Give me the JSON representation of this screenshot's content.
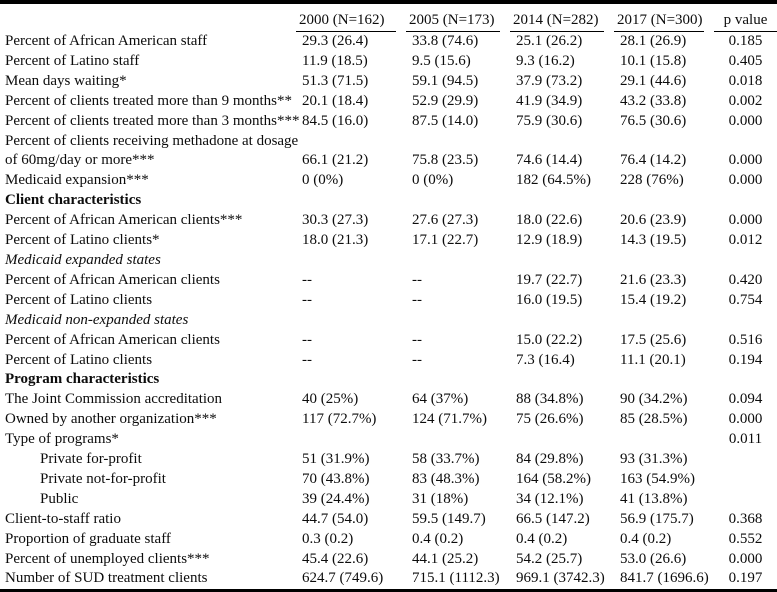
{
  "table": {
    "columns": [
      "",
      "2000 (N=162)",
      "2005 (N=173)",
      "2014 (N=282)",
      "2017 (N=300)",
      "p value"
    ],
    "rows": [
      {
        "label": "Percent of African American staff",
        "style": "normal",
        "values": [
          "29.3 (26.4)",
          "33.8 (74.6)",
          "25.1 (26.2)",
          "28.1 (26.9)",
          "0.185"
        ]
      },
      {
        "label": "Percent of Latino staff",
        "style": "normal",
        "values": [
          "11.9 (18.5)",
          "9.5 (15.6)",
          "9.3 (16.2)",
          "10.1 (15.8)",
          "0.405"
        ]
      },
      {
        "label": "Mean days waiting*",
        "style": "normal",
        "values": [
          "51.3 (71.5)",
          "59.1 (94.5)",
          "37.9 (73.2)",
          "29.1 (44.6)",
          "0.018"
        ]
      },
      {
        "label": "Percent of clients treated more than 9 months**",
        "style": "normal",
        "values": [
          "20.1 (18.4)",
          "52.9 (29.9)",
          "41.9 (34.9)",
          "43.2 (33.8)",
          "0.002"
        ]
      },
      {
        "label": "Percent of clients treated more than 3 months***",
        "style": "normal",
        "values": [
          "84.5 (16.0)",
          "87.5 (14.0)",
          "75.9 (30.6)",
          "76.5 (30.6)",
          "0.000"
        ]
      },
      {
        "label": "Percent of clients receiving methadone at dosage",
        "style": "normal",
        "values": [
          "",
          "",
          "",
          "",
          ""
        ]
      },
      {
        "label": "of 60mg/day or more***",
        "style": "normal",
        "values": [
          "66.1 (21.2)",
          "75.8 (23.5)",
          "74.6 (14.4)",
          "76.4 (14.2)",
          "0.000"
        ]
      },
      {
        "label": "Medicaid expansion***",
        "style": "normal",
        "values": [
          "0 (0%)",
          "0 (0%)",
          "182 (64.5%)",
          "228 (76%)",
          "0.000"
        ]
      },
      {
        "label": "Client characteristics",
        "style": "bold",
        "values": [
          "",
          "",
          "",
          "",
          ""
        ]
      },
      {
        "label": "Percent of African American clients***",
        "style": "normal",
        "values": [
          "30.3 (27.3)",
          "27.6 (27.3)",
          "18.0 (22.6)",
          "20.6 (23.9)",
          "0.000"
        ]
      },
      {
        "label": "Percent of Latino clients*",
        "style": "normal",
        "values": [
          "18.0 (21.3)",
          "17.1 (22.7)",
          "12.9 (18.9)",
          "14.3 (19.5)",
          "0.012"
        ]
      },
      {
        "label": "Medicaid expanded states",
        "style": "italic",
        "values": [
          "",
          "",
          "",
          "",
          ""
        ]
      },
      {
        "label": "Percent of African American clients",
        "style": "normal",
        "values": [
          "--",
          "--",
          "19.7 (22.7)",
          "21.6 (23.3)",
          "0.420"
        ]
      },
      {
        "label": "Percent of Latino clients",
        "style": "normal",
        "values": [
          "--",
          "--",
          "16.0 (19.5)",
          "15.4 (19.2)",
          "0.754"
        ]
      },
      {
        "label": "Medicaid non-expanded states",
        "style": "italic",
        "values": [
          "",
          "",
          "",
          "",
          ""
        ]
      },
      {
        "label": "Percent of African American clients",
        "style": "normal",
        "values": [
          "--",
          "--",
          "15.0 (22.2)",
          "17.5 (25.6)",
          "0.516"
        ]
      },
      {
        "label": "Percent of Latino clients",
        "style": "normal",
        "values": [
          "--",
          "--",
          "7.3 (16.4)",
          "11.1 (20.1)",
          "0.194"
        ]
      },
      {
        "label": "Program characteristics",
        "style": "bold",
        "values": [
          "",
          "",
          "",
          "",
          ""
        ]
      },
      {
        "label": "The Joint Commission accreditation",
        "style": "normal",
        "values": [
          "40 (25%)",
          "64 (37%)",
          "88 (34.8%)",
          "90 (34.2%)",
          "0.094"
        ]
      },
      {
        "label": "Owned by another organization***",
        "style": "normal",
        "values": [
          "117 (72.7%)",
          "124 (71.7%)",
          "75 (26.6%)",
          "85 (28.5%)",
          "0.000"
        ]
      },
      {
        "label": "Type of programs*",
        "style": "normal",
        "values": [
          "",
          "",
          "",
          "",
          "0.011"
        ]
      },
      {
        "label": "Private for-profit",
        "style": "indent",
        "values": [
          "51 (31.9%)",
          "58 (33.7%)",
          "84 (29.8%)",
          "93 (31.3%)",
          ""
        ]
      },
      {
        "label": "Private not-for-profit",
        "style": "indent",
        "values": [
          "70 (43.8%)",
          "83 (48.3%)",
          "164 (58.2%)",
          "163 (54.9%)",
          ""
        ]
      },
      {
        "label": "Public",
        "style": "indent",
        "values": [
          "39 (24.4%)",
          "31 (18%)",
          "34 (12.1%)",
          "41 (13.8%)",
          ""
        ]
      },
      {
        "label": "Client-to-staff ratio",
        "style": "normal",
        "values": [
          "44.7 (54.0)",
          "59.5 (149.7)",
          "66.5 (147.2)",
          "56.9 (175.7)",
          "0.368"
        ]
      },
      {
        "label": "Proportion of graduate staff",
        "style": "normal",
        "values": [
          "0.3 (0.2)",
          "0.4 (0.2)",
          "0.4 (0.2)",
          "0.4 (0.2)",
          "0.552"
        ]
      },
      {
        "label": "Percent of unemployed clients***",
        "style": "normal",
        "values": [
          "45.4 (22.6)",
          "44.1 (25.2)",
          "54.2 (25.7)",
          "53.0 (26.6)",
          "0.000"
        ]
      },
      {
        "label": "Number of SUD treatment clients",
        "style": "normal",
        "values": [
          "624.7 (749.6)",
          "715.1 (1112.3)",
          "969.1 (3742.3)",
          "841.7 (1696.6)",
          "0.197"
        ]
      }
    ]
  }
}
